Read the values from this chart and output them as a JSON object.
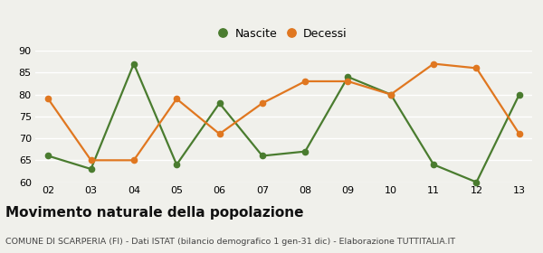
{
  "years": [
    "02",
    "03",
    "04",
    "05",
    "06",
    "07",
    "08",
    "09",
    "10",
    "11",
    "12",
    "13"
  ],
  "nascite": [
    66,
    63,
    87,
    64,
    78,
    66,
    67,
    84,
    80,
    64,
    60,
    80
  ],
  "decessi": [
    79,
    65,
    65,
    79,
    71,
    78,
    83,
    83,
    80,
    87,
    86,
    71
  ],
  "nascite_color": "#4a7c2f",
  "decessi_color": "#e07720",
  "title": "Movimento naturale della popolazione",
  "subtitle": "COMUNE DI SCARPERIA (FI) - Dati ISTAT (bilancio demografico 1 gen-31 dic) - Elaborazione TUTTITALIA.IT",
  "legend_nascite": "Nascite",
  "legend_decessi": "Decessi",
  "ylim_min": 60,
  "ylim_max": 90,
  "yticks": [
    60,
    65,
    70,
    75,
    80,
    85,
    90
  ],
  "background_color": "#f0f0eb",
  "grid_color": "#ffffff",
  "title_fontsize": 11,
  "subtitle_fontsize": 6.8,
  "axis_fontsize": 8,
  "legend_fontsize": 9,
  "marker_size": 4.5,
  "line_width": 1.6
}
